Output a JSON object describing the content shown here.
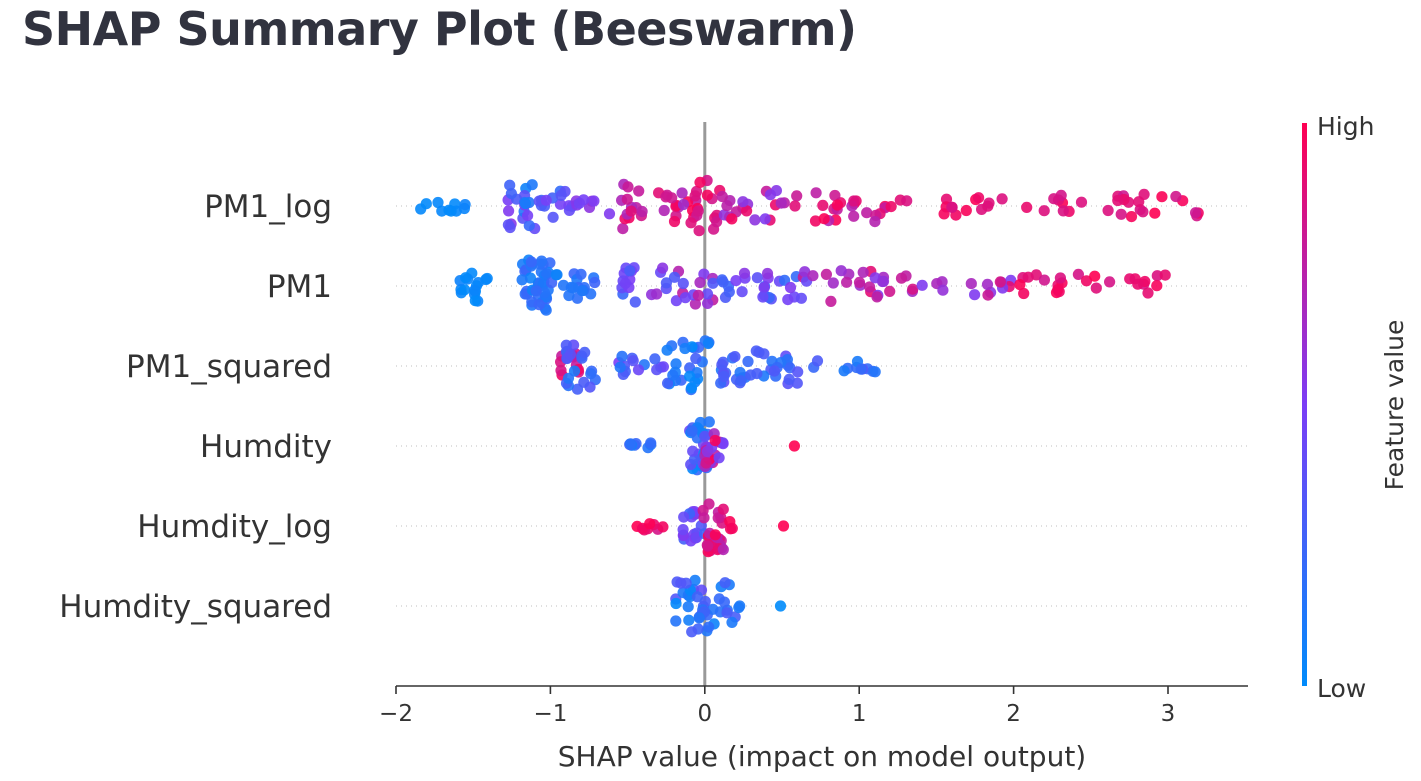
{
  "page": {
    "title": "SHAP Summary Plot (Beeswarm)"
  },
  "chart_data": {
    "type": "scatter",
    "subtype": "beeswarm",
    "xlabel": "SHAP value (impact on model output)",
    "xlim": [
      -2,
      3.5
    ],
    "xticks": [
      -2,
      -1,
      0,
      1,
      2,
      3
    ],
    "xtick_labels": [
      "−2",
      "−1",
      "0",
      "1",
      "2",
      "3"
    ],
    "zero_line": true,
    "colorbar": {
      "label": "Feature value",
      "high_label": "High",
      "low_label": "Low",
      "high_color": "#ff0052",
      "low_color": "#008bfb"
    },
    "colors": {
      "axis": "#333333",
      "zero_line": "#999999",
      "row_line": "#cccccc"
    },
    "features": [
      {
        "name": "PM1_log",
        "segments": [
          [
            -1.85,
            -1.55,
            10,
            0.0,
            0.05,
            0.2
          ],
          [
            -1.3,
            -1.1,
            20,
            0.05,
            0.6,
            0.9
          ],
          [
            -1.1,
            -0.85,
            14,
            0.2,
            0.5,
            0.6
          ],
          [
            -0.85,
            -0.6,
            8,
            0.45,
            0.6,
            0.3
          ],
          [
            -0.55,
            -0.4,
            14,
            0.6,
            0.95,
            0.9
          ],
          [
            -0.3,
            -0.05,
            14,
            0.6,
            1.0,
            0.6
          ],
          [
            -0.1,
            0.1,
            18,
            0.8,
            1.0,
            1.0
          ],
          [
            0.1,
            0.6,
            22,
            0.5,
            1.0,
            0.6
          ],
          [
            0.7,
            1.2,
            22,
            0.7,
            1.0,
            0.6
          ],
          [
            1.2,
            2.2,
            18,
            0.85,
            1.0,
            0.35
          ],
          [
            2.2,
            3.25,
            26,
            0.8,
            1.0,
            0.45
          ]
        ]
      },
      {
        "name": "PM1",
        "segments": [
          [
            -1.6,
            -1.4,
            16,
            0.0,
            0.05,
            0.6
          ],
          [
            -1.2,
            -1.0,
            40,
            0.05,
            0.25,
            1.0
          ],
          [
            -1.0,
            -0.7,
            18,
            0.05,
            0.25,
            0.5
          ],
          [
            -0.55,
            -0.45,
            12,
            0.2,
            0.5,
            0.9
          ],
          [
            -0.35,
            0.1,
            22,
            0.3,
            0.8,
            0.7
          ],
          [
            0.1,
            0.6,
            24,
            0.2,
            0.6,
            0.6
          ],
          [
            0.6,
            1.2,
            24,
            0.4,
            0.9,
            0.6
          ],
          [
            1.2,
            2.0,
            18,
            0.5,
            1.0,
            0.4
          ],
          [
            2.0,
            3.0,
            26,
            0.8,
            1.0,
            0.45
          ]
        ]
      },
      {
        "name": "PM1_squared",
        "segments": [
          [
            -0.95,
            -0.8,
            10,
            0.7,
            1.0,
            0.5
          ],
          [
            -0.9,
            -0.7,
            20,
            0.1,
            0.4,
            0.9
          ],
          [
            -0.6,
            -0.2,
            14,
            0.1,
            0.5,
            0.4
          ],
          [
            -0.25,
            0.05,
            26,
            0.0,
            0.3,
            1.0
          ],
          [
            0.05,
            0.6,
            36,
            0.1,
            0.4,
            0.7
          ],
          [
            0.6,
            1.2,
            12,
            0.05,
            0.35,
            0.3
          ]
        ]
      },
      {
        "name": "Humdity",
        "segments": [
          [
            -0.55,
            -0.25,
            8,
            0.05,
            0.3,
            0.15
          ],
          [
            -0.1,
            0.05,
            30,
            0.0,
            0.45,
            1.0
          ],
          [
            0.0,
            0.12,
            22,
            0.4,
            1.0,
            0.8
          ],
          [
            0.58,
            0.58,
            1,
            1.0,
            1.0,
            0.0
          ]
        ]
      },
      {
        "name": "Humdity_log",
        "segments": [
          [
            -0.45,
            -0.25,
            8,
            0.8,
            1.0,
            0.15
          ],
          [
            -0.15,
            0.0,
            18,
            0.2,
            0.55,
            0.6
          ],
          [
            -0.02,
            0.12,
            30,
            0.7,
            1.0,
            1.0
          ],
          [
            0.15,
            0.2,
            3,
            0.85,
            1.0,
            0.2
          ],
          [
            0.51,
            0.51,
            1,
            1.0,
            1.0,
            0.0
          ]
        ]
      },
      {
        "name": "Humdity_squared",
        "segments": [
          [
            -0.2,
            0.2,
            40,
            0.0,
            0.4,
            1.0
          ],
          [
            0.2,
            0.25,
            2,
            0.0,
            0.2,
            0.1
          ],
          [
            0.49,
            0.49,
            1,
            0.0,
            0.0,
            0.0
          ]
        ]
      }
    ]
  }
}
